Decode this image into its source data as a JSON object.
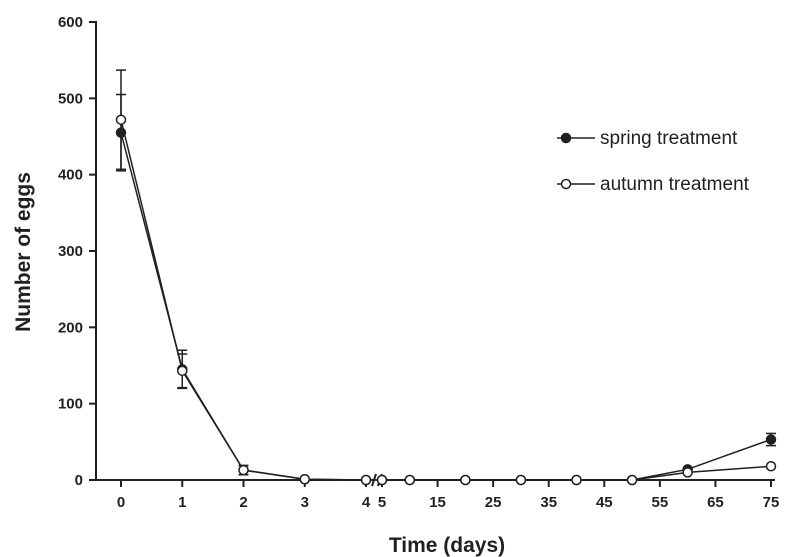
{
  "chart_data": {
    "type": "line",
    "title": "",
    "xlabel": "Time (days)",
    "ylabel": "Number of eggs",
    "ylim": [
      0,
      600
    ],
    "yticks": [
      "0",
      "100",
      "200",
      "300",
      "400",
      "500",
      "600"
    ],
    "x_segments": [
      {
        "range": [
          0,
          4
        ],
        "ticks": [
          "0",
          "1",
          "2",
          "3",
          "4"
        ]
      },
      {
        "range": [
          5,
          75
        ],
        "ticks": [
          "5",
          "15",
          "25",
          "35",
          "45",
          "55",
          "65",
          "75"
        ]
      }
    ],
    "axis_break": "between 4 and 5",
    "grid": false,
    "legend_position": "top-right",
    "series": [
      {
        "name": "spring treatment",
        "marker": "filled-circle",
        "points": [
          {
            "x": 0,
            "y": 455,
            "err": 50
          },
          {
            "x": 1,
            "y": 145,
            "err": 25
          },
          {
            "x": 2,
            "y": 13,
            "err": 6
          },
          {
            "x": 3,
            "y": 1
          },
          {
            "x": 4,
            "y": 0
          },
          {
            "x": 5,
            "y": 0
          },
          {
            "x": 10,
            "y": 0
          },
          {
            "x": 20,
            "y": 0
          },
          {
            "x": 30,
            "y": 0
          },
          {
            "x": 40,
            "y": 0
          },
          {
            "x": 50,
            "y": 0
          },
          {
            "x": 60,
            "y": 14
          },
          {
            "x": 75,
            "y": 53,
            "err": 8
          }
        ]
      },
      {
        "name": "autumn treatment",
        "marker": "open-circle",
        "points": [
          {
            "x": 0,
            "y": 472,
            "err": 65
          },
          {
            "x": 1,
            "y": 143,
            "err": 22
          },
          {
            "x": 2,
            "y": 13,
            "err": 6
          },
          {
            "x": 3,
            "y": 1
          },
          {
            "x": 4,
            "y": 0
          },
          {
            "x": 5,
            "y": 0
          },
          {
            "x": 10,
            "y": 0
          },
          {
            "x": 20,
            "y": 0
          },
          {
            "x": 30,
            "y": 0
          },
          {
            "x": 40,
            "y": 0
          },
          {
            "x": 50,
            "y": 0
          },
          {
            "x": 60,
            "y": 10
          },
          {
            "x": 75,
            "y": 18
          }
        ]
      }
    ]
  }
}
